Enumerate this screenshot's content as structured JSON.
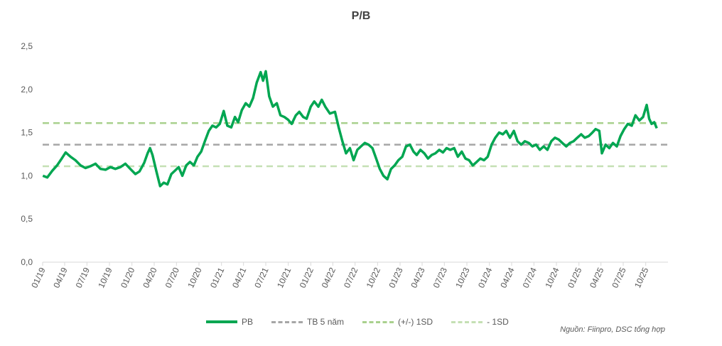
{
  "chart_data": {
    "type": "line",
    "title": "P/B",
    "xlabel": "",
    "ylabel": "",
    "ylim": [
      0,
      2.5
    ],
    "y_ticks": [
      "0,0",
      "0,5",
      "1,0",
      "1,5",
      "2,0",
      "2,5"
    ],
    "y_tick_values": [
      0,
      0.5,
      1.0,
      1.5,
      2.0,
      2.5
    ],
    "x_range": [
      "2019-01-01",
      "2025-12-31"
    ],
    "x_ticks": [
      "01/19",
      "04/19",
      "07/19",
      "10/19",
      "01/20",
      "04/20",
      "07/20",
      "10/20",
      "01/21",
      "04/21",
      "07/21",
      "10/21",
      "01/22",
      "04/22",
      "07/22",
      "10/22",
      "01/23",
      "04/23",
      "07/23",
      "10/23",
      "01/24",
      "04/24",
      "07/24",
      "10/24",
      "01/25",
      "04/25",
      "07/25",
      "10/25"
    ],
    "grid": false,
    "legend_position": "bottom",
    "series": [
      {
        "name": "PB",
        "color": "#00A651",
        "style": "solid",
        "points": [
          [
            "2019-01-02",
            1.0
          ],
          [
            "2019-01-20",
            0.98
          ],
          [
            "2019-02-10",
            1.06
          ],
          [
            "2019-03-01",
            1.12
          ],
          [
            "2019-03-20",
            1.2
          ],
          [
            "2019-04-05",
            1.27
          ],
          [
            "2019-04-25",
            1.22
          ],
          [
            "2019-05-15",
            1.18
          ],
          [
            "2019-06-05",
            1.12
          ],
          [
            "2019-06-25",
            1.09
          ],
          [
            "2019-07-15",
            1.11
          ],
          [
            "2019-08-05",
            1.14
          ],
          [
            "2019-08-25",
            1.08
          ],
          [
            "2019-09-15",
            1.07
          ],
          [
            "2019-10-05",
            1.1
          ],
          [
            "2019-10-25",
            1.08
          ],
          [
            "2019-11-15",
            1.1
          ],
          [
            "2019-12-05",
            1.14
          ],
          [
            "2019-12-25",
            1.08
          ],
          [
            "2020-01-15",
            1.02
          ],
          [
            "2020-02-01",
            1.05
          ],
          [
            "2020-02-20",
            1.15
          ],
          [
            "2020-03-05",
            1.26
          ],
          [
            "2020-03-15",
            1.32
          ],
          [
            "2020-03-25",
            1.24
          ],
          [
            "2020-04-10",
            1.05
          ],
          [
            "2020-04-25",
            0.88
          ],
          [
            "2020-05-10",
            0.92
          ],
          [
            "2020-05-25",
            0.9
          ],
          [
            "2020-06-10",
            1.02
          ],
          [
            "2020-06-25",
            1.06
          ],
          [
            "2020-07-10",
            1.1
          ],
          [
            "2020-07-25",
            1.0
          ],
          [
            "2020-08-10",
            1.12
          ],
          [
            "2020-08-25",
            1.16
          ],
          [
            "2020-09-10",
            1.12
          ],
          [
            "2020-09-25",
            1.22
          ],
          [
            "2020-10-10",
            1.28
          ],
          [
            "2020-10-25",
            1.4
          ],
          [
            "2020-11-10",
            1.52
          ],
          [
            "2020-11-25",
            1.58
          ],
          [
            "2020-12-10",
            1.56
          ],
          [
            "2020-12-25",
            1.6
          ],
          [
            "2021-01-10",
            1.75
          ],
          [
            "2021-01-25",
            1.58
          ],
          [
            "2021-02-10",
            1.56
          ],
          [
            "2021-02-25",
            1.68
          ],
          [
            "2021-03-10",
            1.62
          ],
          [
            "2021-03-25",
            1.76
          ],
          [
            "2021-04-10",
            1.84
          ],
          [
            "2021-04-25",
            1.8
          ],
          [
            "2021-05-10",
            1.9
          ],
          [
            "2021-05-25",
            2.08
          ],
          [
            "2021-06-10",
            2.2
          ],
          [
            "2021-06-20",
            2.1
          ],
          [
            "2021-07-01",
            2.21
          ],
          [
            "2021-07-15",
            1.92
          ],
          [
            "2021-07-30",
            1.8
          ],
          [
            "2021-08-15",
            1.84
          ],
          [
            "2021-08-30",
            1.7
          ],
          [
            "2021-09-15",
            1.68
          ],
          [
            "2021-09-30",
            1.65
          ],
          [
            "2021-10-15",
            1.6
          ],
          [
            "2021-11-01",
            1.7
          ],
          [
            "2021-11-15",
            1.74
          ],
          [
            "2021-12-01",
            1.68
          ],
          [
            "2021-12-15",
            1.66
          ],
          [
            "2022-01-01",
            1.8
          ],
          [
            "2022-01-15",
            1.86
          ],
          [
            "2022-02-01",
            1.8
          ],
          [
            "2022-02-15",
            1.88
          ],
          [
            "2022-03-01",
            1.8
          ],
          [
            "2022-03-20",
            1.72
          ],
          [
            "2022-04-10",
            1.74
          ],
          [
            "2022-04-25",
            1.56
          ],
          [
            "2022-05-10",
            1.4
          ],
          [
            "2022-05-25",
            1.26
          ],
          [
            "2022-06-10",
            1.32
          ],
          [
            "2022-06-25",
            1.18
          ],
          [
            "2022-07-10",
            1.3
          ],
          [
            "2022-07-25",
            1.34
          ],
          [
            "2022-08-10",
            1.38
          ],
          [
            "2022-08-25",
            1.36
          ],
          [
            "2022-09-10",
            1.32
          ],
          [
            "2022-09-25",
            1.2
          ],
          [
            "2022-10-10",
            1.08
          ],
          [
            "2022-10-25",
            1.0
          ],
          [
            "2022-11-10",
            0.96
          ],
          [
            "2022-11-25",
            1.08
          ],
          [
            "2022-12-10",
            1.12
          ],
          [
            "2022-12-25",
            1.18
          ],
          [
            "2023-01-10",
            1.22
          ],
          [
            "2023-01-25",
            1.34
          ],
          [
            "2023-02-10",
            1.36
          ],
          [
            "2023-02-25",
            1.28
          ],
          [
            "2023-03-10",
            1.24
          ],
          [
            "2023-03-25",
            1.3
          ],
          [
            "2023-04-10",
            1.26
          ],
          [
            "2023-04-25",
            1.2
          ],
          [
            "2023-05-10",
            1.24
          ],
          [
            "2023-05-25",
            1.26
          ],
          [
            "2023-06-10",
            1.3
          ],
          [
            "2023-06-25",
            1.27
          ],
          [
            "2023-07-10",
            1.32
          ],
          [
            "2023-07-25",
            1.3
          ],
          [
            "2023-08-10",
            1.32
          ],
          [
            "2023-08-25",
            1.22
          ],
          [
            "2023-09-10",
            1.28
          ],
          [
            "2023-09-25",
            1.2
          ],
          [
            "2023-10-10",
            1.18
          ],
          [
            "2023-10-25",
            1.12
          ],
          [
            "2023-11-10",
            1.16
          ],
          [
            "2023-11-25",
            1.2
          ],
          [
            "2023-12-10",
            1.18
          ],
          [
            "2023-12-25",
            1.22
          ],
          [
            "2024-01-10",
            1.36
          ],
          [
            "2024-01-25",
            1.44
          ],
          [
            "2024-02-10",
            1.5
          ],
          [
            "2024-02-25",
            1.48
          ],
          [
            "2024-03-10",
            1.52
          ],
          [
            "2024-03-25",
            1.44
          ],
          [
            "2024-04-10",
            1.52
          ],
          [
            "2024-04-25",
            1.4
          ],
          [
            "2024-05-10",
            1.36
          ],
          [
            "2024-05-25",
            1.4
          ],
          [
            "2024-06-10",
            1.38
          ],
          [
            "2024-06-25",
            1.34
          ],
          [
            "2024-07-10",
            1.36
          ],
          [
            "2024-07-25",
            1.3
          ],
          [
            "2024-08-10",
            1.34
          ],
          [
            "2024-08-25",
            1.3
          ],
          [
            "2024-09-10",
            1.4
          ],
          [
            "2024-09-25",
            1.44
          ],
          [
            "2024-10-10",
            1.42
          ],
          [
            "2024-10-25",
            1.38
          ],
          [
            "2024-11-10",
            1.34
          ],
          [
            "2024-11-25",
            1.38
          ],
          [
            "2024-12-10",
            1.4
          ],
          [
            "2024-12-25",
            1.44
          ],
          [
            "2025-01-10",
            1.48
          ],
          [
            "2025-01-25",
            1.44
          ],
          [
            "2025-02-10",
            1.46
          ],
          [
            "2025-02-25",
            1.5
          ],
          [
            "2025-03-10",
            1.54
          ],
          [
            "2025-03-25",
            1.52
          ],
          [
            "2025-04-05",
            1.26
          ],
          [
            "2025-04-20",
            1.36
          ],
          [
            "2025-05-05",
            1.32
          ],
          [
            "2025-05-20",
            1.38
          ],
          [
            "2025-06-05",
            1.34
          ],
          [
            "2025-06-20",
            1.46
          ],
          [
            "2025-07-05",
            1.54
          ],
          [
            "2025-07-20",
            1.6
          ],
          [
            "2025-08-05",
            1.58
          ],
          [
            "2025-08-20",
            1.7
          ],
          [
            "2025-09-05",
            1.64
          ],
          [
            "2025-09-20",
            1.68
          ],
          [
            "2025-10-05",
            1.82
          ],
          [
            "2025-10-15",
            1.66
          ],
          [
            "2025-10-25",
            1.6
          ],
          [
            "2025-11-05",
            1.62
          ],
          [
            "2025-11-15",
            1.55
          ]
        ]
      },
      {
        "name": "TB 5 năm",
        "color": "#A6A6A6",
        "style": "dashed",
        "constant": 1.36
      },
      {
        "name": "(+/-) 1SD",
        "color": "#A9D18E",
        "style": "dashed",
        "constant": 1.61
      },
      {
        "name": "- 1SD",
        "color": "#C5E0B4",
        "style": "dashed",
        "constant": 1.11
      }
    ],
    "source_note": "Nguồn: Fiinpro, DSC tổng hợp"
  }
}
